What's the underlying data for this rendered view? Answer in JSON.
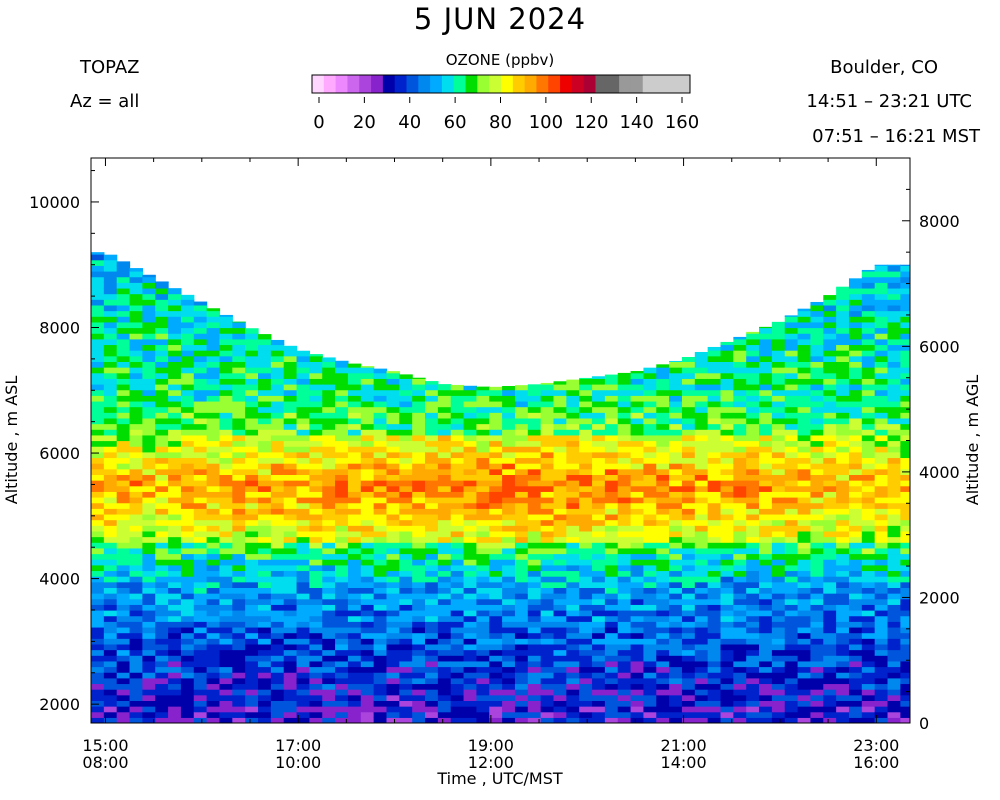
{
  "header": {
    "title": "5 JUN 2024",
    "instrument": "TOPAZ",
    "azimuth": "Az = all",
    "location": "Boulder, CO",
    "time_utc": "14:51 – 23:21 UTC",
    "time_mst": "07:51 – 16:21 MST"
  },
  "colorbar": {
    "title": "OZONE (ppbv)",
    "tick_labels": [
      "0",
      "20",
      "40",
      "60",
      "80",
      "100",
      "120",
      "140",
      "160"
    ],
    "colors": [
      "#ffd6ff",
      "#ffaaff",
      "#ee88ff",
      "#cc66ee",
      "#aa44dd",
      "#8822cc",
      "#0000aa",
      "#0022cc",
      "#0055dd",
      "#0088ee",
      "#00aaff",
      "#00ddee",
      "#00ff99",
      "#00dd00",
      "#99ff33",
      "#ccff33",
      "#ffff00",
      "#ffcc00",
      "#ffaa00",
      "#ff7700",
      "#ff4400",
      "#ee0000",
      "#cc0022",
      "#aa0033",
      "#666666",
      "#666666",
      "#999999",
      "#999999",
      "#cccccc",
      "#cccccc",
      "#cccccc",
      "#cccccc"
    ]
  },
  "axes": {
    "xlabel": "Time , UTC/MST",
    "ylabel_left": "Altitude , m ASL",
    "ylabel_right": "Altitude , m AGL"
  },
  "chart_data": {
    "type": "heatmap",
    "title": "5 JUN 2024",
    "xlabel": "Time , UTC/MST",
    "ylabel": "Altitude , m ASL",
    "ylabel_right": "Altitude , m AGL",
    "x_ticks_utc": [
      "15:00",
      "17:00",
      "19:00",
      "21:00",
      "23:00"
    ],
    "x_ticks_mst": [
      "08:00",
      "10:00",
      "12:00",
      "14:00",
      "16:00"
    ],
    "x_range_utc": [
      "14:51",
      "23:21"
    ],
    "y_left_ticks": [
      2000,
      4000,
      6000,
      8000,
      10000
    ],
    "y_left_range": [
      1700,
      10700
    ],
    "y_right_ticks": [
      0,
      2000,
      4000,
      6000,
      8000
    ],
    "colorbar_range": [
      0,
      160
    ],
    "colorbar_unit": "OZONE (ppbv)",
    "profiles": [
      {
        "time": "15:00",
        "top": 9200
      },
      {
        "time": "15:30",
        "top": 8800
      },
      {
        "time": "16:00",
        "top": 8400
      },
      {
        "time": "16:30",
        "top": 8000
      },
      {
        "time": "17:00",
        "top": 7650
      },
      {
        "time": "17:30",
        "top": 7450
      },
      {
        "time": "18:00",
        "top": 7300
      },
      {
        "time": "18:30",
        "top": 7100
      },
      {
        "time": "19:00",
        "top": 7050
      },
      {
        "time": "19:30",
        "top": 7100
      },
      {
        "time": "20:00",
        "top": 7200
      },
      {
        "time": "20:30",
        "top": 7300
      },
      {
        "time": "21:00",
        "top": 7500
      },
      {
        "time": "21:30",
        "top": 7800
      },
      {
        "time": "22:00",
        "top": 8100
      },
      {
        "time": "22:30",
        "top": 8500
      },
      {
        "time": "23:00",
        "top": 9000
      }
    ],
    "vertical_layers_ppbv": [
      {
        "altitude": 1800,
        "ozone": 32
      },
      {
        "altitude": 2500,
        "ozone": 38
      },
      {
        "altitude": 3200,
        "ozone": 44
      },
      {
        "altitude": 3900,
        "ozone": 52
      },
      {
        "altitude": 4400,
        "ozone": 64
      },
      {
        "altitude": 5000,
        "ozone": 78
      },
      {
        "altitude": 5500,
        "ozone": 86
      },
      {
        "altitude": 6100,
        "ozone": 72
      },
      {
        "altitude": 6800,
        "ozone": 64
      },
      {
        "altitude": 7600,
        "ozone": 62
      },
      {
        "altitude": 8500,
        "ozone": 58
      },
      {
        "altitude": 9200,
        "ozone": 50
      }
    ],
    "grid": false
  }
}
